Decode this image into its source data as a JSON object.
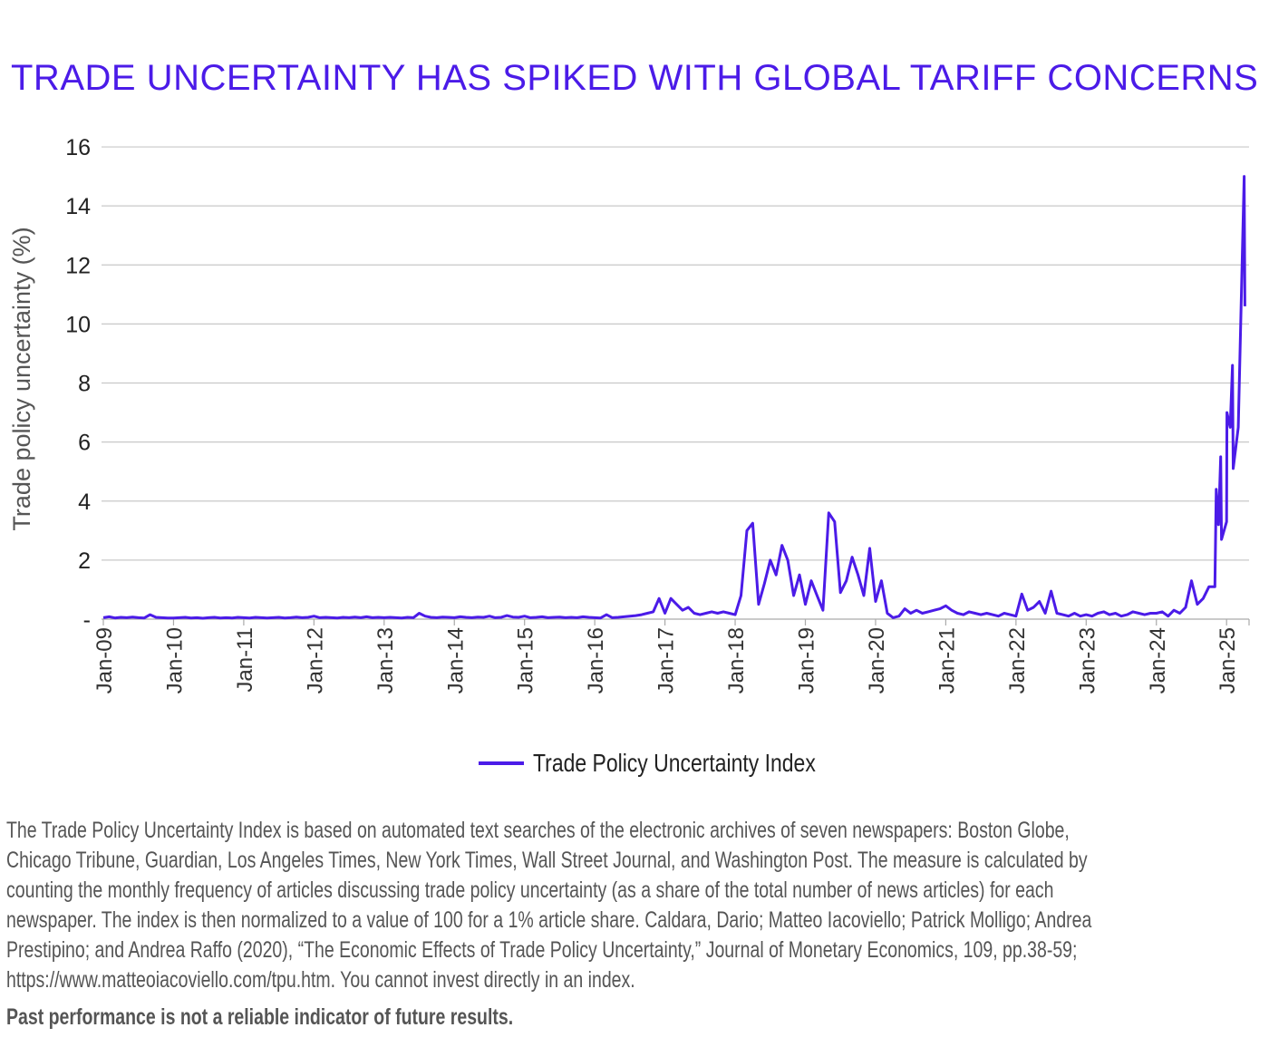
{
  "title": "TRADE UNCERTAINTY HAS SPIKED WITH GLOBAL TARIFF CONCERNS",
  "colors": {
    "accent": "#4b1be8",
    "grid": "#c8c8c8",
    "text": "#555555"
  },
  "chart_data": {
    "type": "line",
    "title": "TRADE UNCERTAINTY HAS SPIKED WITH GLOBAL TARIFF CONCERNS",
    "xlabel": "",
    "ylabel": "Trade policy uncertainty (%)",
    "ylim": [
      0,
      16
    ],
    "yticks": [
      "-",
      "2",
      "4",
      "6",
      "8",
      "10",
      "12",
      "14",
      "16"
    ],
    "xticks": [
      "Jan-09",
      "Jan-10",
      "Jan-11",
      "Jan-12",
      "Jan-13",
      "Jan-14",
      "Jan-15",
      "Jan-16",
      "Jan-17",
      "Jan-18",
      "Jan-19",
      "Jan-20",
      "Jan-21",
      "Jan-22",
      "Jan-23",
      "Jan-24",
      "Jan-25"
    ],
    "xlim": [
      "2009-01-01",
      "2025-05-15"
    ],
    "grid": true,
    "legend_position": "bottom",
    "series": [
      {
        "name": "Trade Policy Uncertainty Index",
        "monthly_start": "2009-01",
        "monthly_values": [
          0.05,
          0.08,
          0.04,
          0.06,
          0.05,
          0.07,
          0.05,
          0.04,
          0.15,
          0.06,
          0.05,
          0.04,
          0.04,
          0.05,
          0.06,
          0.04,
          0.05,
          0.03,
          0.05,
          0.06,
          0.04,
          0.05,
          0.04,
          0.06,
          0.05,
          0.04,
          0.06,
          0.05,
          0.04,
          0.05,
          0.06,
          0.04,
          0.05,
          0.07,
          0.05,
          0.06,
          0.1,
          0.05,
          0.06,
          0.05,
          0.04,
          0.06,
          0.05,
          0.07,
          0.05,
          0.08,
          0.05,
          0.06,
          0.05,
          0.06,
          0.05,
          0.04,
          0.06,
          0.05,
          0.2,
          0.1,
          0.06,
          0.05,
          0.07,
          0.06,
          0.05,
          0.08,
          0.06,
          0.05,
          0.07,
          0.06,
          0.1,
          0.05,
          0.06,
          0.12,
          0.07,
          0.06,
          0.1,
          0.05,
          0.06,
          0.08,
          0.05,
          0.06,
          0.07,
          0.05,
          0.06,
          0.05,
          0.08,
          0.06,
          0.05,
          0.04,
          0.15,
          0.05,
          0.06,
          0.08,
          0.1,
          0.12,
          0.15,
          0.2,
          0.25,
          0.7,
          0.2,
          0.7,
          0.5,
          0.3,
          0.4,
          0.2,
          0.15,
          0.2,
          0.25,
          0.2,
          0.25,
          0.2,
          0.15,
          0.8,
          3.0,
          3.25,
          0.5,
          1.2,
          2.0,
          1.5,
          2.5,
          2.0,
          0.8,
          1.5,
          0.5,
          1.3,
          0.8,
          0.3,
          3.6,
          3.3,
          0.9,
          1.3,
          2.1,
          1.5,
          0.8,
          2.4,
          0.6,
          1.3,
          0.2,
          0.05,
          0.1,
          0.35,
          0.2,
          0.3,
          0.2,
          0.25,
          0.3,
          0.35,
          0.45,
          0.3,
          0.2,
          0.15,
          0.25,
          0.2,
          0.15,
          0.2,
          0.15,
          0.1,
          0.2,
          0.15,
          0.1,
          0.85,
          0.3,
          0.4,
          0.6,
          0.2,
          0.95,
          0.2,
          0.15,
          0.1,
          0.2,
          0.1,
          0.15,
          0.1,
          0.2,
          0.25,
          0.15,
          0.2,
          0.1,
          0.15,
          0.25,
          0.2,
          0.15,
          0.2,
          0.2,
          0.25,
          0.1,
          0.3,
          0.2,
          0.4,
          1.3,
          0.5,
          0.7,
          1.1
        ],
        "recent_points": [
          [
            "2024-11-01",
            1.1
          ],
          [
            "2024-11-08",
            4.4
          ],
          [
            "2024-11-20",
            3.2
          ],
          [
            "2024-12-01",
            5.5
          ],
          [
            "2024-12-05",
            2.7
          ],
          [
            "2025-01-01",
            3.3
          ],
          [
            "2025-01-03",
            7.0
          ],
          [
            "2025-01-20",
            6.5
          ],
          [
            "2025-02-01",
            8.6
          ],
          [
            "2025-02-05",
            5.1
          ],
          [
            "2025-03-01",
            6.5
          ],
          [
            "2025-04-01",
            15.0
          ],
          [
            "2025-04-05",
            10.6
          ]
        ]
      }
    ]
  },
  "legend": {
    "label": "Trade Policy Uncertainty Index"
  },
  "notes": [
    "The Trade Policy Uncertainty Index is based on automated text searches of the electronic archives of seven newspapers: Boston Globe,",
    "Chicago Tribune, Guardian, Los Angeles Times, New York Times, Wall Street Journal, and Washington Post. The measure is calculated by",
    "counting the monthly frequency of articles discussing trade policy uncertainty (as a share of the total number of news articles) for each",
    "newspaper. The index is then normalized to a value of 100 for a 1% article share. Caldara, Dario; Matteo Iacoviello; Patrick Molligo; Andrea",
    "Prestipino; and Andrea Raffo (2020), “The Economic Effects of Trade Policy Uncertainty,” Journal of Monetary Economics, 109, pp.38-59;",
    "https://www.matteoiacoviello.com/tpu.htm. You cannot invest directly in an index."
  ],
  "disclaimer": "Past performance is not a reliable indicator of future results."
}
